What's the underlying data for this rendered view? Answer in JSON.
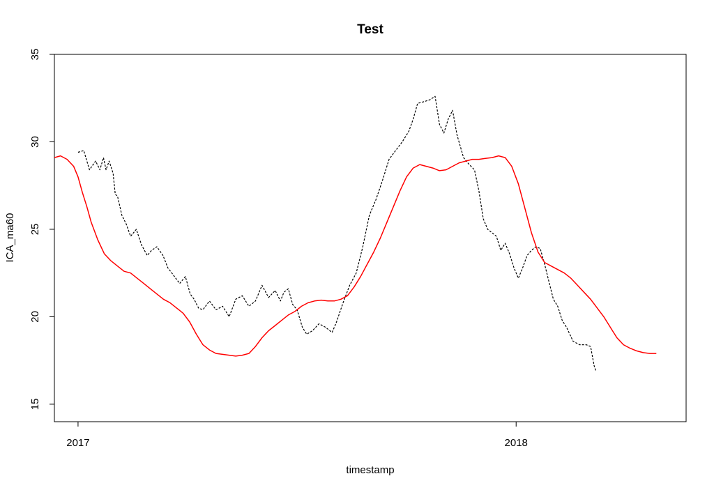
{
  "chart_data": {
    "type": "line",
    "title": "Test",
    "xlabel": "timestamp",
    "ylabel": "ICA_ma60",
    "xlim": [
      -0.054,
      1.388
    ],
    "ylim": [
      14,
      35
    ],
    "y_ticks": [
      15,
      20,
      25,
      30,
      35
    ],
    "x_ticks": [
      {
        "value": 0,
        "label": "2017"
      },
      {
        "value": 1,
        "label": "2018"
      }
    ],
    "x_unit": "years since 2017-01-01",
    "grid": false,
    "legend": "none",
    "series": [
      {
        "style": "dashed",
        "color": "#000000",
        "points": [
          [
            0.0,
            29.4
          ],
          [
            0.013,
            29.5
          ],
          [
            0.026,
            28.4
          ],
          [
            0.04,
            28.9
          ],
          [
            0.05,
            28.4
          ],
          [
            0.058,
            29.1
          ],
          [
            0.064,
            28.4
          ],
          [
            0.071,
            28.9
          ],
          [
            0.08,
            28.2
          ],
          [
            0.085,
            27.0
          ],
          [
            0.09,
            26.9
          ],
          [
            0.1,
            25.8
          ],
          [
            0.11,
            25.3
          ],
          [
            0.12,
            24.6
          ],
          [
            0.133,
            25.0
          ],
          [
            0.145,
            24.1
          ],
          [
            0.158,
            23.5
          ],
          [
            0.168,
            23.8
          ],
          [
            0.18,
            24.0
          ],
          [
            0.194,
            23.5
          ],
          [
            0.205,
            22.8
          ],
          [
            0.22,
            22.3
          ],
          [
            0.232,
            21.9
          ],
          [
            0.245,
            22.3
          ],
          [
            0.256,
            21.3
          ],
          [
            0.265,
            21.0
          ],
          [
            0.275,
            20.5
          ],
          [
            0.285,
            20.4
          ],
          [
            0.3,
            20.9
          ],
          [
            0.315,
            20.4
          ],
          [
            0.33,
            20.6
          ],
          [
            0.345,
            20.0
          ],
          [
            0.36,
            21.0
          ],
          [
            0.375,
            21.2
          ],
          [
            0.39,
            20.6
          ],
          [
            0.405,
            20.9
          ],
          [
            0.42,
            21.8
          ],
          [
            0.435,
            21.1
          ],
          [
            0.45,
            21.5
          ],
          [
            0.462,
            20.9
          ],
          [
            0.47,
            21.4
          ],
          [
            0.48,
            21.6
          ],
          [
            0.49,
            20.7
          ],
          [
            0.5,
            20.4
          ],
          [
            0.512,
            19.4
          ],
          [
            0.522,
            19.0
          ],
          [
            0.535,
            19.2
          ],
          [
            0.55,
            19.6
          ],
          [
            0.565,
            19.4
          ],
          [
            0.58,
            19.1
          ],
          [
            0.59,
            19.7
          ],
          [
            0.605,
            20.8
          ],
          [
            0.62,
            21.8
          ],
          [
            0.635,
            22.5
          ],
          [
            0.65,
            24.0
          ],
          [
            0.665,
            25.8
          ],
          [
            0.68,
            26.7
          ],
          [
            0.695,
            27.8
          ],
          [
            0.71,
            29.0
          ],
          [
            0.725,
            29.5
          ],
          [
            0.74,
            30.0
          ],
          [
            0.755,
            30.6
          ],
          [
            0.765,
            31.3
          ],
          [
            0.775,
            32.2
          ],
          [
            0.79,
            32.3
          ],
          [
            0.803,
            32.4
          ],
          [
            0.815,
            32.6
          ],
          [
            0.825,
            31.0
          ],
          [
            0.835,
            30.5
          ],
          [
            0.845,
            31.3
          ],
          [
            0.855,
            31.8
          ],
          [
            0.865,
            30.4
          ],
          [
            0.88,
            29.1
          ],
          [
            0.893,
            28.7
          ],
          [
            0.905,
            28.4
          ],
          [
            0.915,
            27.2
          ],
          [
            0.925,
            25.6
          ],
          [
            0.935,
            25.0
          ],
          [
            0.945,
            24.8
          ],
          [
            0.955,
            24.6
          ],
          [
            0.965,
            23.8
          ],
          [
            0.975,
            24.2
          ],
          [
            0.985,
            23.6
          ],
          [
            0.995,
            22.8
          ],
          [
            1.005,
            22.2
          ],
          [
            1.015,
            22.8
          ],
          [
            1.025,
            23.5
          ],
          [
            1.035,
            23.8
          ],
          [
            1.045,
            24.0
          ],
          [
            1.055,
            23.9
          ],
          [
            1.065,
            23.0
          ],
          [
            1.075,
            22.0
          ],
          [
            1.085,
            21.0
          ],
          [
            1.095,
            20.6
          ],
          [
            1.105,
            19.8
          ],
          [
            1.115,
            19.4
          ],
          [
            1.13,
            18.6
          ],
          [
            1.145,
            18.4
          ],
          [
            1.16,
            18.4
          ],
          [
            1.17,
            18.3
          ],
          [
            1.178,
            17.2
          ],
          [
            1.182,
            16.9
          ]
        ]
      },
      {
        "style": "solid",
        "color": "#ff0000",
        "points": [
          [
            -0.054,
            29.1
          ],
          [
            -0.04,
            29.2
          ],
          [
            -0.025,
            29.0
          ],
          [
            -0.01,
            28.6
          ],
          [
            0.0,
            28.0
          ],
          [
            0.01,
            27.1
          ],
          [
            0.02,
            26.3
          ],
          [
            0.03,
            25.4
          ],
          [
            0.045,
            24.4
          ],
          [
            0.06,
            23.6
          ],
          [
            0.075,
            23.2
          ],
          [
            0.09,
            22.9
          ],
          [
            0.105,
            22.6
          ],
          [
            0.12,
            22.5
          ],
          [
            0.135,
            22.2
          ],
          [
            0.15,
            21.9
          ],
          [
            0.165,
            21.6
          ],
          [
            0.18,
            21.3
          ],
          [
            0.195,
            21.0
          ],
          [
            0.21,
            20.8
          ],
          [
            0.225,
            20.5
          ],
          [
            0.24,
            20.2
          ],
          [
            0.255,
            19.7
          ],
          [
            0.27,
            19.0
          ],
          [
            0.285,
            18.4
          ],
          [
            0.3,
            18.1
          ],
          [
            0.315,
            17.9
          ],
          [
            0.33,
            17.85
          ],
          [
            0.345,
            17.8
          ],
          [
            0.36,
            17.75
          ],
          [
            0.375,
            17.8
          ],
          [
            0.39,
            17.9
          ],
          [
            0.405,
            18.3
          ],
          [
            0.42,
            18.8
          ],
          [
            0.435,
            19.2
          ],
          [
            0.45,
            19.5
          ],
          [
            0.465,
            19.8
          ],
          [
            0.48,
            20.1
          ],
          [
            0.495,
            20.3
          ],
          [
            0.51,
            20.6
          ],
          [
            0.525,
            20.8
          ],
          [
            0.54,
            20.9
          ],
          [
            0.555,
            20.95
          ],
          [
            0.57,
            20.9
          ],
          [
            0.585,
            20.9
          ],
          [
            0.6,
            21.0
          ],
          [
            0.615,
            21.2
          ],
          [
            0.63,
            21.7
          ],
          [
            0.645,
            22.3
          ],
          [
            0.66,
            23.0
          ],
          [
            0.675,
            23.7
          ],
          [
            0.69,
            24.5
          ],
          [
            0.705,
            25.4
          ],
          [
            0.72,
            26.3
          ],
          [
            0.735,
            27.2
          ],
          [
            0.75,
            28.0
          ],
          [
            0.765,
            28.5
          ],
          [
            0.78,
            28.7
          ],
          [
            0.795,
            28.6
          ],
          [
            0.81,
            28.5
          ],
          [
            0.825,
            28.35
          ],
          [
            0.84,
            28.4
          ],
          [
            0.855,
            28.6
          ],
          [
            0.87,
            28.8
          ],
          [
            0.885,
            28.9
          ],
          [
            0.9,
            29.0
          ],
          [
            0.915,
            29.0
          ],
          [
            0.93,
            29.05
          ],
          [
            0.945,
            29.1
          ],
          [
            0.96,
            29.2
          ],
          [
            0.975,
            29.1
          ],
          [
            0.99,
            28.6
          ],
          [
            1.005,
            27.6
          ],
          [
            1.02,
            26.2
          ],
          [
            1.035,
            24.8
          ],
          [
            1.05,
            23.7
          ],
          [
            1.065,
            23.1
          ],
          [
            1.08,
            22.9
          ],
          [
            1.095,
            22.7
          ],
          [
            1.11,
            22.5
          ],
          [
            1.125,
            22.2
          ],
          [
            1.14,
            21.8
          ],
          [
            1.155,
            21.4
          ],
          [
            1.17,
            21.0
          ],
          [
            1.185,
            20.5
          ],
          [
            1.2,
            20.0
          ],
          [
            1.215,
            19.4
          ],
          [
            1.23,
            18.8
          ],
          [
            1.245,
            18.4
          ],
          [
            1.26,
            18.2
          ],
          [
            1.275,
            18.05
          ],
          [
            1.29,
            17.95
          ],
          [
            1.305,
            17.9
          ],
          [
            1.32,
            17.9
          ]
        ]
      }
    ]
  }
}
